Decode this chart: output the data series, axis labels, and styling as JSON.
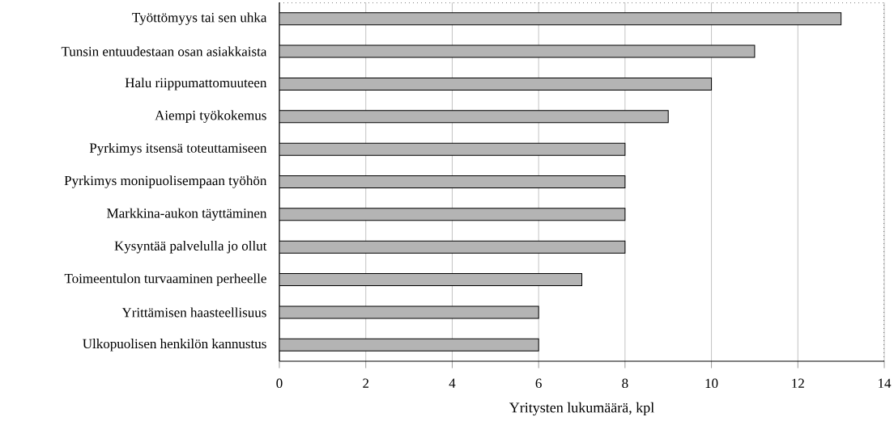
{
  "chart_data": {
    "type": "bar",
    "orientation": "horizontal",
    "xlabel": "Yritysten lukumäärä, kpl",
    "categories": [
      "Työttömyys tai sen uhka",
      "Tunsin entuudestaan osan asiakkaista",
      "Halu riippumattomuuteen",
      "Aiempi työkokemus",
      "Pyrkimys itsensä toteuttamiseen",
      "Pyrkimys monipuolisempaan työhön",
      "Markkina-aukon täyttäminen",
      "Kysyntää palvelulla jo ollut",
      "Toimeentulon turvaaminen perheelle",
      "Yrittämisen haasteellisuus",
      "Ulkopuolisen henkilön kannustus"
    ],
    "values": [
      13,
      11,
      10,
      9,
      8,
      8,
      8,
      8,
      7,
      6,
      6
    ],
    "color": "#b4b4b4",
    "xlim": [
      0,
      14
    ],
    "xticks": [
      0,
      2,
      4,
      6,
      8,
      10,
      12,
      14
    ],
    "grid": "x"
  }
}
